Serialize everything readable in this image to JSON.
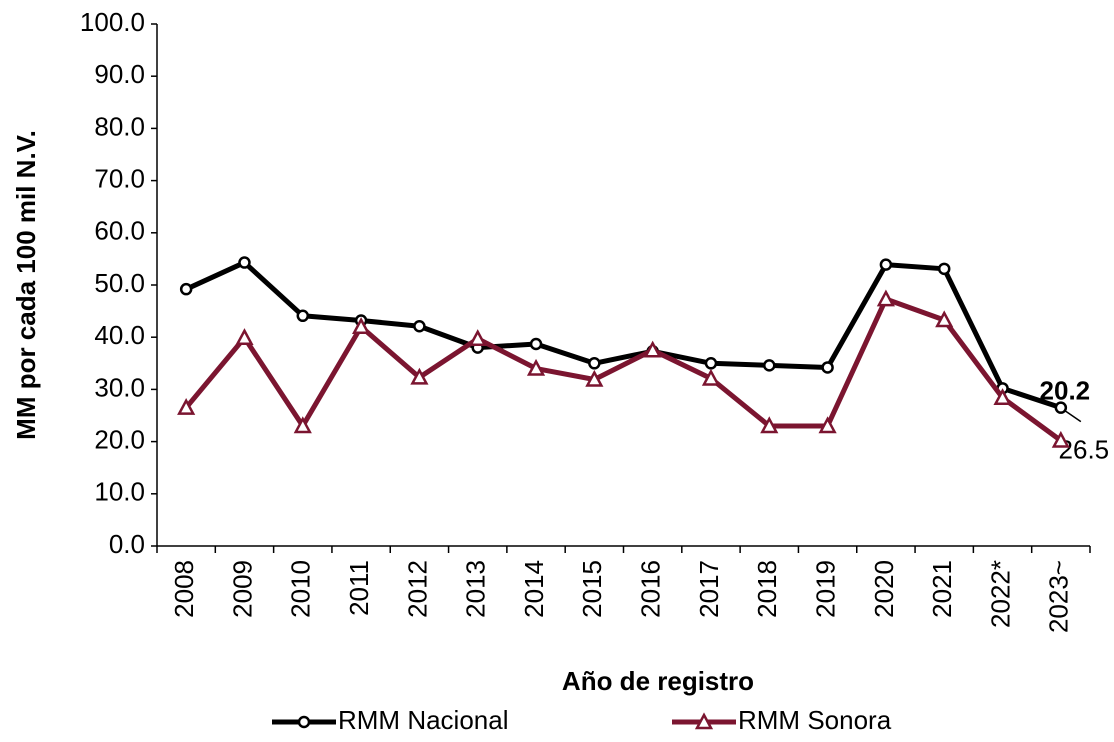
{
  "chart_data": {
    "type": "line",
    "y_label": "MM por cada 100 mil N.V.",
    "x_label": "Año de registro",
    "categories": [
      "2008",
      "2009",
      "2010",
      "2011",
      "2012",
      "2013",
      "2014",
      "2015",
      "2016",
      "2017",
      "2018",
      "2019",
      "2020",
      "2021",
      "2022*",
      "2023~"
    ],
    "series": [
      {
        "name": "RMM Nacional",
        "color": "#000000",
        "marker": "circle",
        "values": [
          49.2,
          54.3,
          44.1,
          43.2,
          42.1,
          38.0,
          38.7,
          35.0,
          37.3,
          35.0,
          34.6,
          34.2,
          53.9,
          53.1,
          30.2,
          26.5
        ],
        "value_labels": [
          null,
          null,
          null,
          null,
          null,
          null,
          null,
          null,
          null,
          null,
          null,
          null,
          null,
          null,
          null,
          "26.5"
        ]
      },
      {
        "name": "RMM Sonora",
        "color": "#7b1530",
        "marker": "triangle",
        "values": [
          26.5,
          39.9,
          23.0,
          42.0,
          32.3,
          39.7,
          34.0,
          31.9,
          37.5,
          32.1,
          23.0,
          23.0,
          47.3,
          43.3,
          28.4,
          20.2
        ],
        "value_labels": [
          null,
          null,
          null,
          null,
          null,
          null,
          null,
          null,
          null,
          null,
          null,
          null,
          null,
          null,
          null,
          "20.2"
        ]
      }
    ],
    "ylim": [
      0,
      100
    ],
    "yticks": [
      {
        "value": 0,
        "label": "0.0"
      },
      {
        "value": 10,
        "label": "10.0"
      },
      {
        "value": 20,
        "label": "20.0"
      },
      {
        "value": 30,
        "label": "30.0"
      },
      {
        "value": 40,
        "label": "40.0"
      },
      {
        "value": 50,
        "label": "50.0"
      },
      {
        "value": 60,
        "label": "60.0"
      },
      {
        "value": 70,
        "label": "70.0"
      },
      {
        "value": 80,
        "label": "80.0"
      },
      {
        "value": 90,
        "label": "90.0"
      },
      {
        "value": 100,
        "label": "100.0"
      }
    ],
    "grid": false,
    "legend": "bottom"
  }
}
